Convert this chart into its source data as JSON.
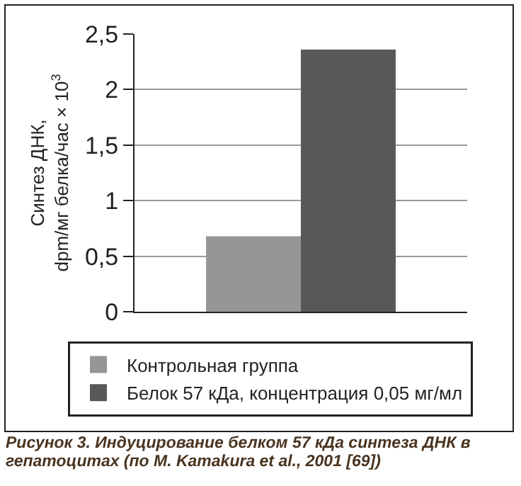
{
  "chart_data": {
    "type": "bar",
    "ylabel": "Синтез ДНК,\ndpm/мг белка/час × 10$^{3}$",
    "categories": [
      null
    ],
    "series": [
      {
        "name": "Контрольная группа",
        "color": "#969698",
        "values": [
          0.68
        ]
      },
      {
        "name": "Белок 57 кДа, концентрация 0,05 мг/мл",
        "color": "#58585a",
        "values": [
          2.36
        ]
      }
    ],
    "ylim": [
      0,
      2.5
    ],
    "yticks": [
      0,
      {
        "value": 0.5,
        "label": "0,5"
      },
      1,
      {
        "value": 1.5,
        "label": "1,5"
      },
      2,
      {
        "value": 2.5,
        "label": "2,5"
      }
    ],
    "grid": "y",
    "legend": "bottom",
    "tick_labels": "y",
    "annotations": [
      "Рисунок 3. Индуцирование белком 57 кДа синтеза ДНК в гепатоцитах (по M. Kamakura et al., 2001 [69])"
    ]
  }
}
